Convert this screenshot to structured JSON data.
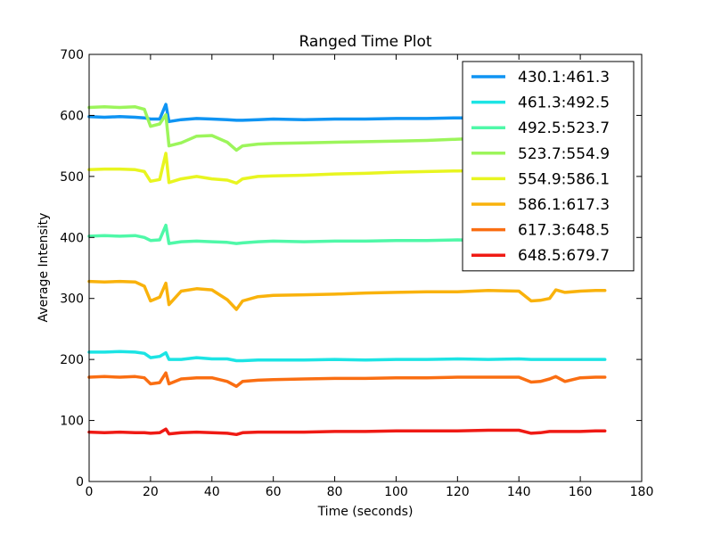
{
  "chart_data": {
    "type": "line",
    "title": "Ranged Time Plot",
    "xlabel": "Time (seconds)",
    "ylabel": "Average Intensity",
    "xlim": [
      0,
      180
    ],
    "ylim": [
      0,
      700
    ],
    "xticks": [
      0,
      20,
      40,
      60,
      80,
      100,
      120,
      140,
      160,
      180
    ],
    "yticks": [
      0,
      100,
      200,
      300,
      400,
      500,
      600,
      700
    ],
    "grid": false,
    "legend_position": "top-right",
    "x": [
      0,
      5,
      10,
      15,
      18,
      20,
      23,
      25,
      26,
      30,
      35,
      40,
      45,
      48,
      50,
      55,
      60,
      70,
      80,
      90,
      100,
      110,
      120,
      130,
      140,
      144,
      147,
      150,
      152,
      155,
      160,
      165,
      168
    ],
    "series": [
      {
        "name": "430.1:461.3",
        "color": "#0f94f3",
        "values": [
          598,
          597,
          598,
          597,
          596,
          594,
          594,
          618,
          590,
          593,
          595,
          594,
          593,
          592,
          592,
          593,
          594,
          593,
          594,
          594,
          595,
          595,
          596,
          596,
          595,
          595,
          595,
          595,
          595,
          595,
          595,
          595,
          595
        ]
      },
      {
        "name": "461.3:492.5",
        "color": "#1ce4e4",
        "values": [
          212,
          212,
          213,
          212,
          210,
          203,
          205,
          211,
          200,
          200,
          203,
          201,
          201,
          198,
          198,
          199,
          199,
          199,
          200,
          199,
          200,
          200,
          201,
          200,
          201,
          200,
          200,
          200,
          200,
          200,
          200,
          200,
          200
        ]
      },
      {
        "name": "492.5:523.7",
        "color": "#4ff8a8",
        "values": [
          402,
          403,
          402,
          403,
          400,
          395,
          396,
          420,
          390,
          393,
          394,
          393,
          392,
          390,
          391,
          393,
          394,
          393,
          394,
          394,
          395,
          395,
          396,
          395,
          396,
          395,
          395,
          395,
          395,
          395,
          395,
          395,
          395
        ]
      },
      {
        "name": "523.7:554.9",
        "color": "#9cf55b",
        "values": [
          613,
          614,
          613,
          614,
          610,
          582,
          586,
          601,
          550,
          555,
          566,
          567,
          556,
          543,
          550,
          553,
          554,
          555,
          556,
          557,
          558,
          559,
          561,
          563,
          564,
          564,
          564,
          564,
          564,
          564,
          564,
          564,
          564
        ]
      },
      {
        "name": "554.9:586.1",
        "color": "#e8f520",
        "values": [
          511,
          512,
          512,
          511,
          508,
          492,
          495,
          538,
          490,
          496,
          500,
          496,
          494,
          489,
          496,
          500,
          501,
          502,
          504,
          505,
          507,
          508,
          509,
          510,
          510,
          510,
          510,
          510,
          510,
          510,
          510,
          510,
          510
        ]
      },
      {
        "name": "586.1:617.3",
        "color": "#f9b20c",
        "values": [
          328,
          327,
          328,
          327,
          320,
          296,
          302,
          325,
          290,
          312,
          316,
          314,
          298,
          282,
          296,
          303,
          305,
          306,
          307,
          309,
          310,
          311,
          311,
          313,
          312,
          296,
          297,
          300,
          314,
          310,
          312,
          313,
          313
        ]
      },
      {
        "name": "617.3:648.5",
        "color": "#fa6e12",
        "values": [
          171,
          172,
          171,
          172,
          170,
          160,
          162,
          178,
          160,
          168,
          170,
          170,
          164,
          156,
          164,
          166,
          167,
          168,
          169,
          169,
          170,
          170,
          171,
          171,
          171,
          163,
          164,
          168,
          172,
          164,
          170,
          171,
          171
        ]
      },
      {
        "name": "648.5:679.7",
        "color": "#ef1a14",
        "values": [
          81,
          80,
          81,
          80,
          80,
          79,
          80,
          86,
          78,
          80,
          81,
          80,
          79,
          77,
          80,
          81,
          81,
          81,
          82,
          82,
          83,
          83,
          83,
          84,
          84,
          79,
          80,
          82,
          82,
          82,
          82,
          83,
          83
        ]
      }
    ]
  }
}
